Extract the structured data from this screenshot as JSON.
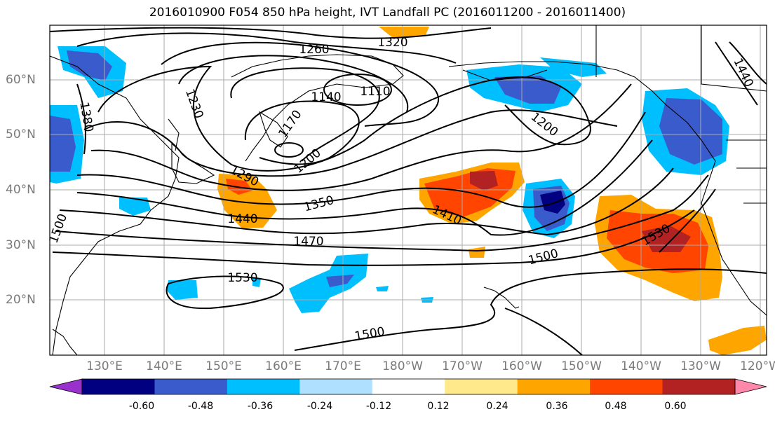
{
  "title": "2016010900 F054 850 hPa height, IVT Landfall PC (2016011200 - 2016011400)",
  "lat_labels": [
    "60°N",
    "50°N",
    "40°N",
    "30°N",
    "20°N"
  ],
  "lon_labels": [
    "130°E",
    "140°E",
    "150°E",
    "160°E",
    "170°E",
    "180°W",
    "170°W",
    "160°W",
    "150°W",
    "140°W",
    "130°W",
    "120°W"
  ],
  "contour_labels": [
    "1260",
    "1320",
    "1140",
    "1110",
    "1230",
    "1170",
    "1200",
    "1290",
    "1350",
    "1440",
    "1410",
    "1470",
    "1530",
    "1500",
    "1200",
    "1530",
    "1380",
    "1440",
    "1500",
    "1500"
  ],
  "colorbar": {
    "colors": [
      "#9932CC",
      "#000080",
      "#3A5BCC",
      "#00BFFF",
      "#B0E0FF",
      "#FFFFFF",
      "#FFE98A",
      "#FFA500",
      "#FF4500",
      "#B22222",
      "#FF88AA"
    ],
    "tick_labels": [
      "-0.60",
      "-0.48",
      "-0.36",
      "-0.24",
      "-0.12",
      "0.12",
      "0.24",
      "0.36",
      "0.48",
      "0.60"
    ]
  }
}
